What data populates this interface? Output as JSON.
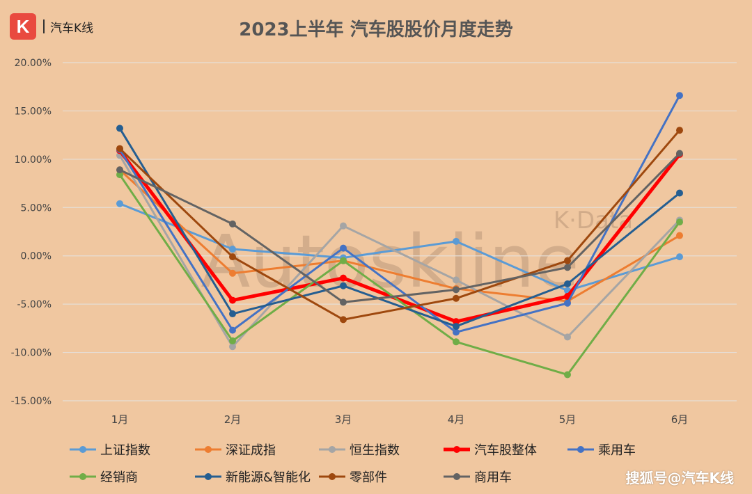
{
  "logo": {
    "mark": "K",
    "text": "汽车K线"
  },
  "chart_data": {
    "type": "line",
    "title": "2023上半年 汽车股股价月度走势",
    "categories": [
      "1月",
      "2月",
      "3月",
      "4月",
      "5月",
      "6月"
    ],
    "ylim": [
      -15,
      20
    ],
    "yticks": [
      20,
      15,
      10,
      5,
      0,
      -5,
      -10,
      -15
    ],
    "ytick_labels": [
      "20.00%",
      "15.00%",
      "10.00%",
      "5.00%",
      "0.00%",
      "-5.00%",
      "-10.00%",
      "-15.00%"
    ],
    "grid": true,
    "legend_position": "bottom",
    "series": [
      {
        "name": "上证指数",
        "color": "#5B9BD5",
        "values": [
          5.4,
          0.7,
          -0.2,
          1.5,
          -3.6,
          -0.1
        ]
      },
      {
        "name": "深证成指",
        "color": "#ED7D31",
        "values": [
          8.9,
          -1.8,
          -0.5,
          -3.4,
          -4.7,
          2.1
        ]
      },
      {
        "name": "恒生指数",
        "color": "#A5A5A5",
        "values": [
          10.4,
          -9.4,
          3.1,
          -2.5,
          -8.4,
          3.7
        ]
      },
      {
        "name": "汽车股整体",
        "color": "#FF0000",
        "values": [
          10.9,
          -4.6,
          -2.3,
          -6.8,
          -4.2,
          10.5
        ]
      },
      {
        "name": "乘用车",
        "color": "#4472C4",
        "values": [
          11.0,
          -7.7,
          0.8,
          -7.9,
          -4.9,
          16.6
        ]
      },
      {
        "name": "经销商",
        "color": "#70AD47",
        "values": [
          8.4,
          -8.8,
          -0.5,
          -8.9,
          -12.3,
          3.5
        ]
      },
      {
        "name": "新能源&智能化",
        "color": "#255E91",
        "values": [
          13.2,
          -6.0,
          -3.1,
          -7.3,
          -2.9,
          6.5
        ]
      },
      {
        "name": "零部件",
        "color": "#9E480E",
        "values": [
          11.1,
          -0.1,
          -6.6,
          -4.4,
          -0.5,
          13.0
        ]
      },
      {
        "name": "商用车",
        "color": "#636363",
        "values": [
          8.9,
          3.3,
          -4.8,
          -3.5,
          -1.2,
          10.6
        ]
      }
    ]
  },
  "watermark": {
    "big": "Autoskline",
    "small": "K·Data",
    "credit": "搜狐号@汽车K线"
  }
}
